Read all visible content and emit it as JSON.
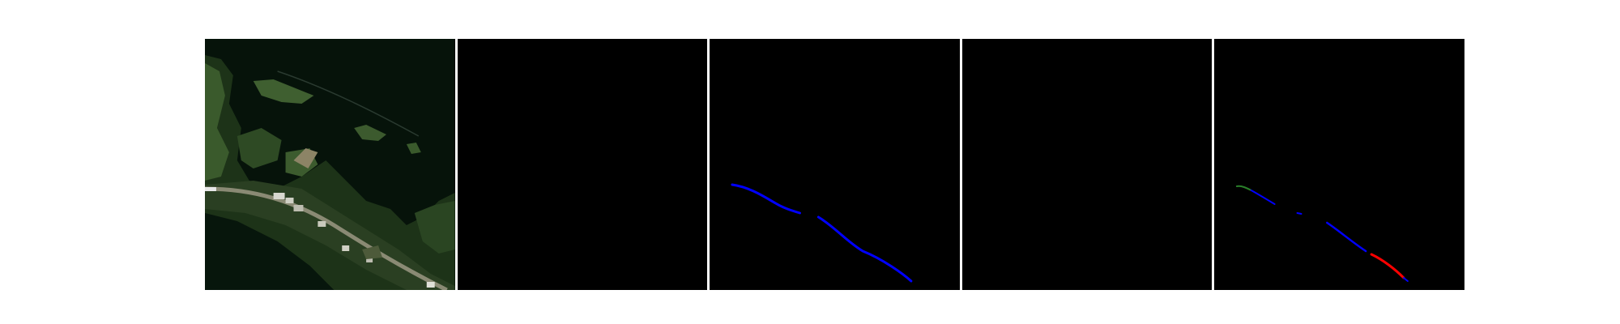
{
  "figure": {
    "panels": [
      {
        "id": "satellite-image",
        "kind": "photo"
      },
      {
        "id": "mask-empty-1",
        "kind": "mask"
      },
      {
        "id": "mask-road-blue",
        "kind": "mask",
        "line_color": "#0000ff"
      },
      {
        "id": "mask-empty-2",
        "kind": "mask"
      },
      {
        "id": "mask-prediction",
        "kind": "mask",
        "line_colors": [
          "#0000ff",
          "#ff0000",
          "#00ff00"
        ]
      }
    ],
    "colors": {
      "background": "#ffffff",
      "mask_background": "#000000",
      "water": "#06140b",
      "vegetation": "#2f4d24",
      "road": "#8a8a74"
    }
  }
}
